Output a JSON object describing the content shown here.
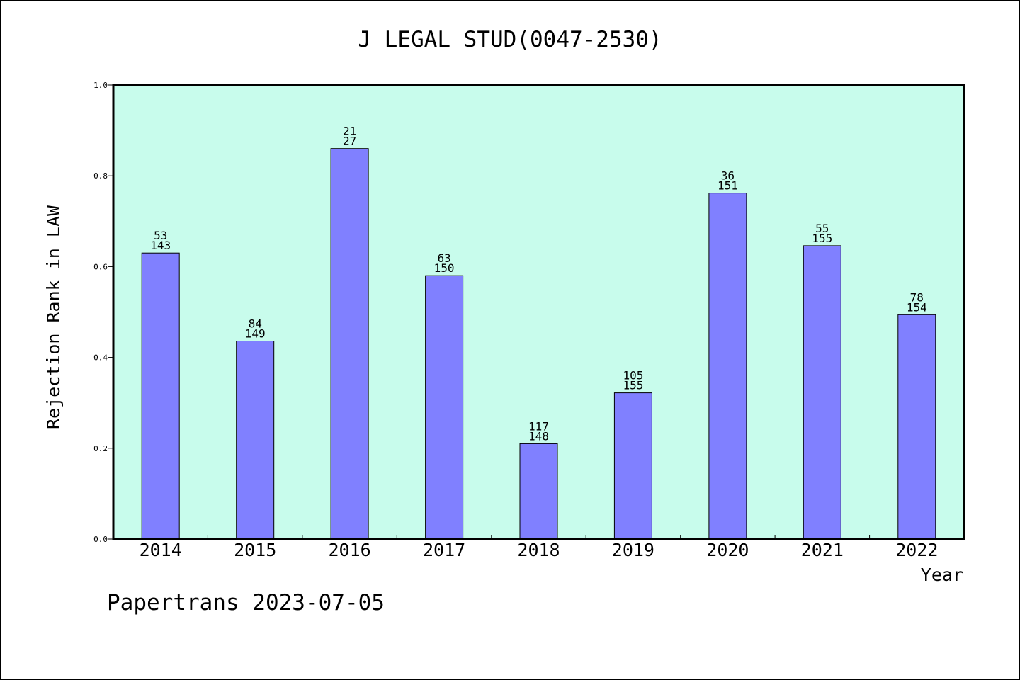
{
  "chart_data": {
    "type": "bar",
    "title": "J LEGAL STUD(0047-2530)",
    "xlabel": "Year",
    "ylabel": "Rejection Rank in LAW",
    "ylim": [
      0,
      1.0
    ],
    "yticks": [
      "0.0",
      "0.2",
      "0.4",
      "0.6",
      "0.8",
      "1.0"
    ],
    "categories": [
      "2014",
      "2015",
      "2016",
      "2017",
      "2018",
      "2019",
      "2020",
      "2021",
      "2022"
    ],
    "values": [
      0.63,
      0.436,
      0.86,
      0.58,
      0.21,
      0.322,
      0.762,
      0.646,
      0.494
    ],
    "labels_top": [
      "53",
      "84",
      "21",
      "63",
      "117",
      "105",
      "36",
      "55",
      "78"
    ],
    "labels_bottom": [
      "143",
      "149",
      "27",
      "150",
      "148",
      "155",
      "151",
      "155",
      "154"
    ],
    "colors": {
      "plot_background": "#c8fcec",
      "bar_fill": "#8080ff",
      "bar_stroke": "#000000"
    }
  },
  "footer": "Papertrans 2023-07-05"
}
